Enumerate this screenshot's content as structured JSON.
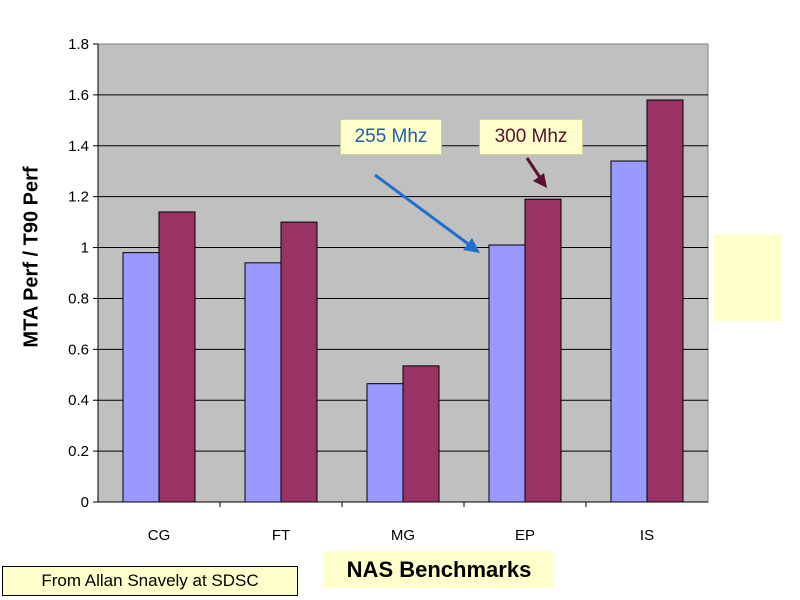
{
  "chart_data": {
    "type": "bar",
    "categories": [
      "CG",
      "FT",
      "MG",
      "EP",
      "IS"
    ],
    "series": [
      {
        "values": [
          0.98,
          0.94,
          0.465,
          1.01,
          1.34
        ],
        "color": "#9999ff"
      },
      {
        "values": [
          1.14,
          1.1,
          0.535,
          1.19,
          1.58
        ],
        "color": "#993366"
      }
    ],
    "ylabel": "MTA Perf / T90 Perf",
    "xlabel": "NAS Benchmarks",
    "ylim": [
      0,
      1.8
    ],
    "yticks": [
      "0",
      "0.2",
      "0.4",
      "0.6",
      "0.8",
      "1",
      "1.2",
      "1.4",
      "1.6",
      "1.8"
    ],
    "grid": true,
    "plot_background": "#c0c0c0",
    "annotations": [
      {
        "text": "255 Mhz",
        "color": "#1f5fa8"
      },
      {
        "text": "300 Mhz",
        "color": "#5a1030"
      }
    ]
  },
  "source_note": "From Allan Snavely at SDSC"
}
